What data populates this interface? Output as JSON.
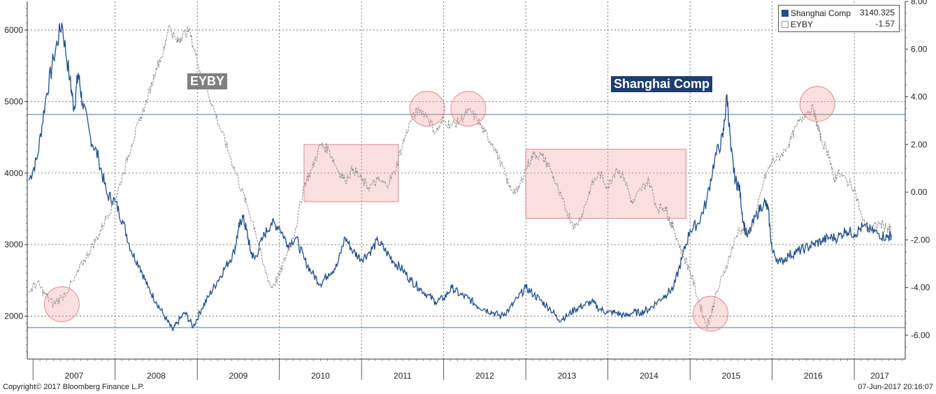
{
  "chart_data": {
    "type": "line",
    "title": "",
    "x_labels": [
      "2007",
      "2008",
      "2009",
      "2010",
      "2011",
      "2012",
      "2013",
      "2014",
      "2015",
      "2016",
      "2017"
    ],
    "left_axis": {
      "min": 1400,
      "max": 6400,
      "ticks": [
        2000,
        3000,
        4000,
        5000,
        6000
      ]
    },
    "right_axis": {
      "min": -7,
      "max": 8,
      "ticks": [
        "8.00",
        "6.00",
        "4.00",
        "2.00",
        "0.00",
        "-2.00",
        "-4.00",
        "-6.00"
      ],
      "tick_values": [
        8,
        6,
        4,
        2,
        0,
        -2,
        -4,
        -6
      ]
    },
    "series": [
      {
        "name": "Shanghai Comp",
        "axis": "left",
        "color": "#1f4e8c",
        "last_value": "3140.325",
        "label": "Shanghai Comp",
        "points": [
          [
            2006.95,
            3900
          ],
          [
            2007.05,
            4200
          ],
          [
            2007.15,
            5000
          ],
          [
            2007.25,
            5600
          ],
          [
            2007.35,
            6100
          ],
          [
            2007.45,
            5300
          ],
          [
            2007.5,
            4900
          ],
          [
            2007.55,
            5400
          ],
          [
            2007.6,
            5000
          ],
          [
            2007.7,
            4500
          ],
          [
            2007.8,
            4200
          ],
          [
            2007.9,
            3700
          ],
          [
            2008.0,
            3600
          ],
          [
            2008.1,
            3300
          ],
          [
            2008.2,
            2900
          ],
          [
            2008.3,
            2700
          ],
          [
            2008.4,
            2400
          ],
          [
            2008.5,
            2200
          ],
          [
            2008.6,
            2000
          ],
          [
            2008.7,
            1800
          ],
          [
            2008.75,
            1900
          ],
          [
            2008.85,
            2050
          ],
          [
            2008.95,
            1850
          ],
          [
            2009.05,
            2100
          ],
          [
            2009.15,
            2300
          ],
          [
            2009.25,
            2500
          ],
          [
            2009.35,
            2700
          ],
          [
            2009.45,
            2900
          ],
          [
            2009.5,
            3200
          ],
          [
            2009.55,
            3400
          ],
          [
            2009.6,
            3200
          ],
          [
            2009.65,
            2900
          ],
          [
            2009.7,
            2800
          ],
          [
            2009.8,
            3100
          ],
          [
            2009.9,
            3300
          ],
          [
            2010.0,
            3250
          ],
          [
            2010.1,
            3000
          ],
          [
            2010.2,
            3100
          ],
          [
            2010.3,
            2800
          ],
          [
            2010.4,
            2600
          ],
          [
            2010.5,
            2450
          ],
          [
            2010.6,
            2600
          ],
          [
            2010.7,
            2700
          ],
          [
            2010.8,
            3100
          ],
          [
            2010.9,
            2900
          ],
          [
            2011.0,
            2800
          ],
          [
            2011.1,
            2900
          ],
          [
            2011.2,
            3050
          ],
          [
            2011.3,
            2900
          ],
          [
            2011.4,
            2750
          ],
          [
            2011.5,
            2650
          ],
          [
            2011.6,
            2500
          ],
          [
            2011.7,
            2400
          ],
          [
            2011.8,
            2300
          ],
          [
            2011.9,
            2200
          ],
          [
            2012.0,
            2250
          ],
          [
            2012.1,
            2400
          ],
          [
            2012.2,
            2300
          ],
          [
            2012.3,
            2250
          ],
          [
            2012.4,
            2150
          ],
          [
            2012.5,
            2100
          ],
          [
            2012.6,
            2050
          ],
          [
            2012.7,
            2000
          ],
          [
            2012.8,
            2100
          ],
          [
            2012.9,
            2250
          ],
          [
            2013.0,
            2400
          ],
          [
            2013.1,
            2300
          ],
          [
            2013.2,
            2200
          ],
          [
            2013.3,
            2100
          ],
          [
            2013.4,
            1950
          ],
          [
            2013.5,
            2000
          ],
          [
            2013.6,
            2100
          ],
          [
            2013.7,
            2150
          ],
          [
            2013.8,
            2200
          ],
          [
            2013.9,
            2100
          ],
          [
            2014.0,
            2050
          ],
          [
            2014.1,
            2050
          ],
          [
            2014.2,
            2000
          ],
          [
            2014.3,
            2050
          ],
          [
            2014.4,
            2050
          ],
          [
            2014.5,
            2100
          ],
          [
            2014.6,
            2200
          ],
          [
            2014.7,
            2300
          ],
          [
            2014.8,
            2400
          ],
          [
            2014.9,
            2800
          ],
          [
            2015.0,
            3200
          ],
          [
            2015.1,
            3300
          ],
          [
            2015.2,
            3600
          ],
          [
            2015.3,
            4200
          ],
          [
            2015.4,
            4500
          ],
          [
            2015.45,
            5100
          ],
          [
            2015.5,
            4300
          ],
          [
            2015.55,
            3900
          ],
          [
            2015.6,
            3800
          ],
          [
            2015.65,
            3300
          ],
          [
            2015.7,
            3100
          ],
          [
            2015.8,
            3400
          ],
          [
            2015.9,
            3600
          ],
          [
            2015.95,
            3500
          ],
          [
            2016.0,
            2900
          ],
          [
            2016.1,
            2750
          ],
          [
            2016.2,
            2850
          ],
          [
            2016.3,
            2900
          ],
          [
            2016.4,
            2950
          ],
          [
            2016.5,
            3000
          ],
          [
            2016.6,
            3050
          ],
          [
            2016.7,
            3100
          ],
          [
            2016.8,
            3100
          ],
          [
            2016.9,
            3200
          ],
          [
            2017.0,
            3150
          ],
          [
            2017.1,
            3250
          ],
          [
            2017.2,
            3200
          ],
          [
            2017.3,
            3150
          ],
          [
            2017.4,
            3100
          ],
          [
            2017.45,
            3140
          ]
        ]
      },
      {
        "name": "EYBY",
        "axis": "right",
        "color": "#8a8a8a",
        "last_value": "-1.57",
        "label": "EYBY",
        "points": [
          [
            2006.95,
            -4.2
          ],
          [
            2007.05,
            -3.8
          ],
          [
            2007.15,
            -4.3
          ],
          [
            2007.25,
            -4.7
          ],
          [
            2007.35,
            -4.4
          ],
          [
            2007.5,
            -3.7
          ],
          [
            2007.6,
            -3.0
          ],
          [
            2007.7,
            -2.4
          ],
          [
            2007.8,
            -1.8
          ],
          [
            2007.9,
            -1.0
          ],
          [
            2008.0,
            -0.3
          ],
          [
            2008.1,
            0.8
          ],
          [
            2008.2,
            2.0
          ],
          [
            2008.3,
            3.0
          ],
          [
            2008.4,
            4.0
          ],
          [
            2008.5,
            5.2
          ],
          [
            2008.6,
            6.0
          ],
          [
            2008.65,
            7.0
          ],
          [
            2008.75,
            6.3
          ],
          [
            2008.8,
            6.5
          ],
          [
            2008.9,
            6.8
          ],
          [
            2009.0,
            5.5
          ],
          [
            2009.1,
            4.5
          ],
          [
            2009.2,
            3.5
          ],
          [
            2009.3,
            2.5
          ],
          [
            2009.4,
            1.5
          ],
          [
            2009.5,
            0.5
          ],
          [
            2009.6,
            -0.5
          ],
          [
            2009.7,
            -1.5
          ],
          [
            2009.8,
            -3.0
          ],
          [
            2009.9,
            -4.0
          ],
          [
            2010.0,
            -3.5
          ],
          [
            2010.1,
            -2.5
          ],
          [
            2010.2,
            -1.5
          ],
          [
            2010.3,
            0.3
          ],
          [
            2010.4,
            1.0
          ],
          [
            2010.5,
            2.0
          ],
          [
            2010.6,
            1.8
          ],
          [
            2010.7,
            1.0
          ],
          [
            2010.8,
            0.5
          ],
          [
            2010.9,
            1.0
          ],
          [
            2011.0,
            0.5
          ],
          [
            2011.1,
            0.2
          ],
          [
            2011.2,
            0.5
          ],
          [
            2011.3,
            0.3
          ],
          [
            2011.4,
            0.8
          ],
          [
            2011.5,
            2.0
          ],
          [
            2011.6,
            3.0
          ],
          [
            2011.7,
            3.5
          ],
          [
            2011.8,
            3.2
          ],
          [
            2011.9,
            2.5
          ],
          [
            2012.0,
            3.0
          ],
          [
            2012.1,
            2.8
          ],
          [
            2012.2,
            3.0
          ],
          [
            2012.3,
            3.4
          ],
          [
            2012.4,
            3.1
          ],
          [
            2012.5,
            2.5
          ],
          [
            2012.6,
            2.0
          ],
          [
            2012.7,
            1.2
          ],
          [
            2012.8,
            0.2
          ],
          [
            2012.9,
            0.0
          ],
          [
            2013.0,
            1.0
          ],
          [
            2013.1,
            1.6
          ],
          [
            2013.2,
            1.5
          ],
          [
            2013.3,
            1.0
          ],
          [
            2013.4,
            0.0
          ],
          [
            2013.5,
            -0.8
          ],
          [
            2013.6,
            -1.5
          ],
          [
            2013.7,
            -0.8
          ],
          [
            2013.8,
            0.3
          ],
          [
            2013.9,
            0.8
          ],
          [
            2014.0,
            0.2
          ],
          [
            2014.1,
            1.0
          ],
          [
            2014.2,
            0.6
          ],
          [
            2014.3,
            -0.5
          ],
          [
            2014.4,
            0.1
          ],
          [
            2014.5,
            0.5
          ],
          [
            2014.6,
            -0.7
          ],
          [
            2014.7,
            -0.6
          ],
          [
            2014.75,
            -1.2
          ],
          [
            2014.8,
            -1.5
          ],
          [
            2014.9,
            -2.5
          ],
          [
            2015.0,
            -3.3
          ],
          [
            2015.1,
            -4.5
          ],
          [
            2015.2,
            -5.6
          ],
          [
            2015.25,
            -5.2
          ],
          [
            2015.3,
            -4.5
          ],
          [
            2015.4,
            -3.5
          ],
          [
            2015.5,
            -2.5
          ],
          [
            2015.6,
            -1.5
          ],
          [
            2015.7,
            -1.8
          ],
          [
            2015.8,
            -1.0
          ],
          [
            2015.9,
            0.5
          ],
          [
            2016.0,
            1.3
          ],
          [
            2016.1,
            1.5
          ],
          [
            2016.2,
            2.0
          ],
          [
            2016.3,
            2.8
          ],
          [
            2016.4,
            3.3
          ],
          [
            2016.5,
            3.5
          ],
          [
            2016.55,
            2.8
          ],
          [
            2016.6,
            2.2
          ],
          [
            2016.7,
            1.5
          ],
          [
            2016.75,
            0.5
          ],
          [
            2016.8,
            0.8
          ],
          [
            2016.9,
            0.5
          ],
          [
            2017.0,
            0.2
          ],
          [
            2017.1,
            -1.2
          ],
          [
            2017.2,
            -1.6
          ],
          [
            2017.3,
            -1.3
          ],
          [
            2017.4,
            -1.5
          ],
          [
            2017.45,
            -1.57
          ]
        ]
      }
    ],
    "reference_lines_left_axis": [
      4820,
      1840
    ],
    "annotations": {
      "circles": [
        {
          "x": 2007.35,
          "y_right": -4.7
        },
        {
          "x": 2011.8,
          "y_right": 3.5
        },
        {
          "x": 2012.3,
          "y_right": 3.5
        },
        {
          "x": 2015.25,
          "y_right": -5.1
        },
        {
          "x": 2016.55,
          "y_right": 3.7
        }
      ],
      "boxes": [
        {
          "x0": 2010.3,
          "x1": 2011.45,
          "y0_right": -0.4,
          "y1_right": 2.0
        },
        {
          "x0": 2013.0,
          "x1": 2014.95,
          "y0_right": -1.1,
          "y1_right": 1.8
        }
      ]
    },
    "grid": true,
    "legend_position": "top-right"
  },
  "footer": {
    "left": "Copyright© 2017 Bloomberg Finance L.P.",
    "right": "07-Jun-2017 20:16:07"
  },
  "legend": {
    "items": [
      {
        "name": "Shanghai Comp",
        "value": "3140.325",
        "color": "#1f4e8c"
      },
      {
        "name": "EYBY",
        "value": "-1.57",
        "color": "#ffffff"
      }
    ]
  },
  "labels": {
    "eyby": "EYBY",
    "shanghai": "Shanghai Comp"
  }
}
